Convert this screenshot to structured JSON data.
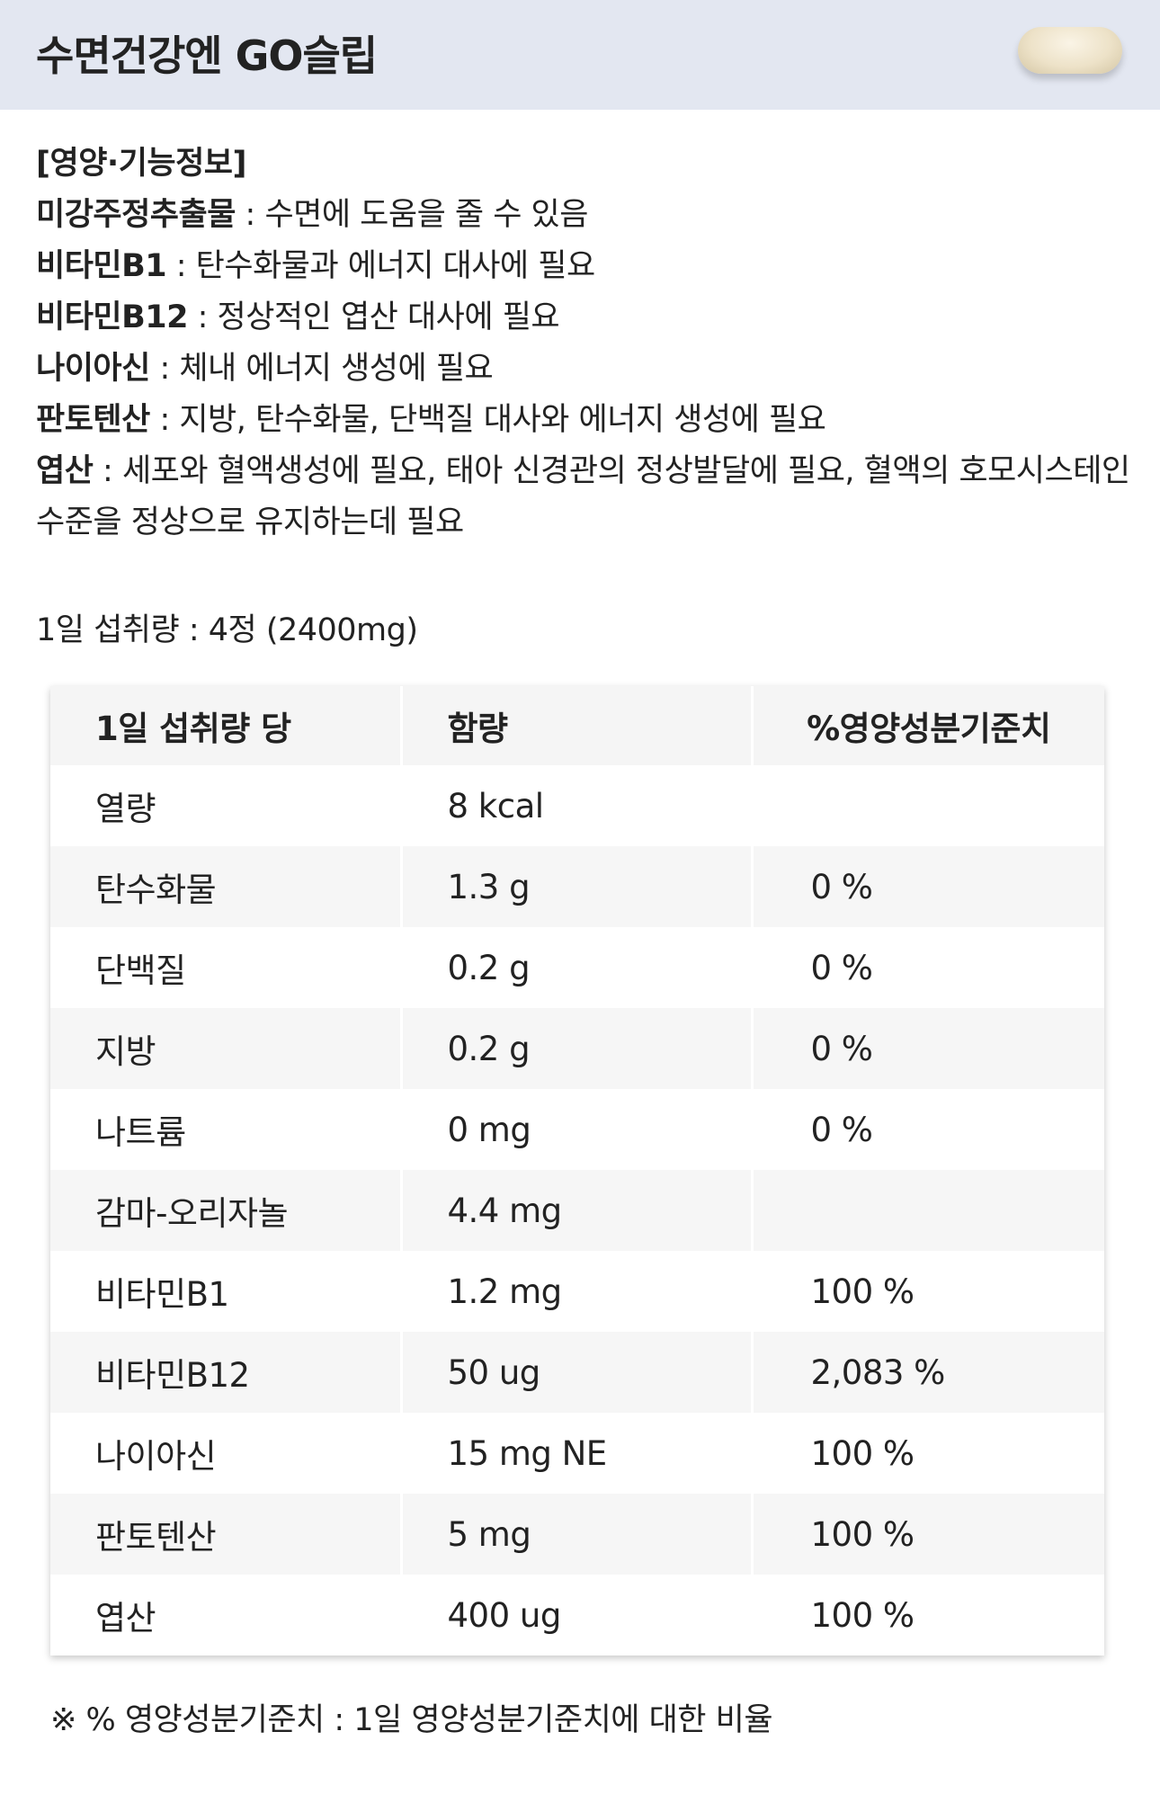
{
  "header": {
    "title": "수면건강엔 GO슬립"
  },
  "info": {
    "heading": "[영양·기능정보]",
    "items": [
      {
        "name": "미강주정추출물",
        "desc": " : 수면에 도움을 줄 수 있음"
      },
      {
        "name": "비타민B1",
        "desc": " : 탄수화물과 에너지 대사에 필요"
      },
      {
        "name": "비타민B12",
        "desc": " : 정상적인 엽산 대사에 필요"
      },
      {
        "name": "나이아신",
        "desc": " : 체내 에너지 생성에 필요"
      },
      {
        "name": "판토텐산",
        "desc": " : 지방, 탄수화물, 단백질 대사와 에너지 생성에 필요"
      },
      {
        "name": "엽산",
        "desc": " : 세포와 혈액생성에 필요, 태아 신경관의 정상발달에 필요, 혈액의 호모시스테인 수준을 정상으로 유지하는데 필요"
      }
    ]
  },
  "intake": "1일 섭취량 : 4정 (2400mg)",
  "table": {
    "headers": [
      "1일 섭취량 당",
      "함량",
      "%영양성분기준치"
    ],
    "rows": [
      [
        "열량",
        "8 kcal",
        ""
      ],
      [
        "탄수화물",
        "1.3 g",
        "0 %"
      ],
      [
        "단백질",
        "0.2 g",
        "0 %"
      ],
      [
        "지방",
        "0.2 g",
        "0 %"
      ],
      [
        "나트륨",
        "0 mg",
        "0 %"
      ],
      [
        "감마-오리자놀",
        "4.4 mg",
        ""
      ],
      [
        "비타민B1",
        "1.2 mg",
        "100 %"
      ],
      [
        "비타민B12",
        "50 ug",
        "2,083 %"
      ],
      [
        "나이아신",
        "15 mg NE",
        "100 %"
      ],
      [
        "판토텐산",
        "5 mg",
        "100 %"
      ],
      [
        "엽산",
        "400 ug",
        "100 %"
      ]
    ]
  },
  "footnote": "※ % 영양성분기준치 : 1일 영양성분기준치에 대한 비율"
}
